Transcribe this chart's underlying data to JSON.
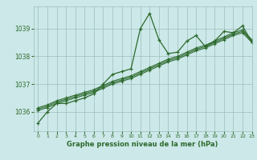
{
  "x": [
    0,
    1,
    2,
    3,
    4,
    5,
    6,
    7,
    8,
    9,
    10,
    11,
    12,
    13,
    14,
    15,
    16,
    17,
    18,
    19,
    20,
    21,
    22,
    23
  ],
  "series1": [
    1035.6,
    1036.0,
    1036.3,
    1036.3,
    1036.4,
    1036.5,
    1036.65,
    1037.0,
    1037.35,
    1037.45,
    1037.55,
    1039.0,
    1039.55,
    1038.6,
    1038.1,
    1038.15,
    1038.55,
    1038.75,
    1038.35,
    1038.55,
    1038.9,
    1038.85,
    1039.1,
    1038.5
  ],
  "series2": [
    1036.05,
    1036.15,
    1036.3,
    1036.4,
    1036.5,
    1036.6,
    1036.7,
    1036.85,
    1037.0,
    1037.1,
    1037.2,
    1037.35,
    1037.5,
    1037.65,
    1037.8,
    1037.9,
    1038.05,
    1038.2,
    1038.3,
    1038.45,
    1038.6,
    1038.75,
    1038.85,
    1038.5
  ],
  "series3": [
    1036.1,
    1036.2,
    1036.35,
    1036.45,
    1036.55,
    1036.65,
    1036.75,
    1036.9,
    1037.05,
    1037.15,
    1037.25,
    1037.4,
    1037.55,
    1037.7,
    1037.85,
    1037.95,
    1038.1,
    1038.25,
    1038.35,
    1038.5,
    1038.65,
    1038.8,
    1038.9,
    1038.55
  ],
  "series4": [
    1036.15,
    1036.25,
    1036.4,
    1036.5,
    1036.6,
    1036.7,
    1036.8,
    1036.95,
    1037.1,
    1037.2,
    1037.3,
    1037.45,
    1037.6,
    1037.75,
    1037.9,
    1038.0,
    1038.15,
    1038.3,
    1038.4,
    1038.55,
    1038.7,
    1038.85,
    1038.95,
    1038.6
  ],
  "line_color": "#2d6a2d",
  "bg_color": "#cce8e8",
  "grid_color": "#9dbdbd",
  "xlabel": "Graphe pression niveau de la mer (hPa)",
  "yticks": [
    1036,
    1037,
    1038,
    1039
  ],
  "ylim": [
    1035.3,
    1039.8
  ],
  "xlim": [
    -0.5,
    23
  ]
}
